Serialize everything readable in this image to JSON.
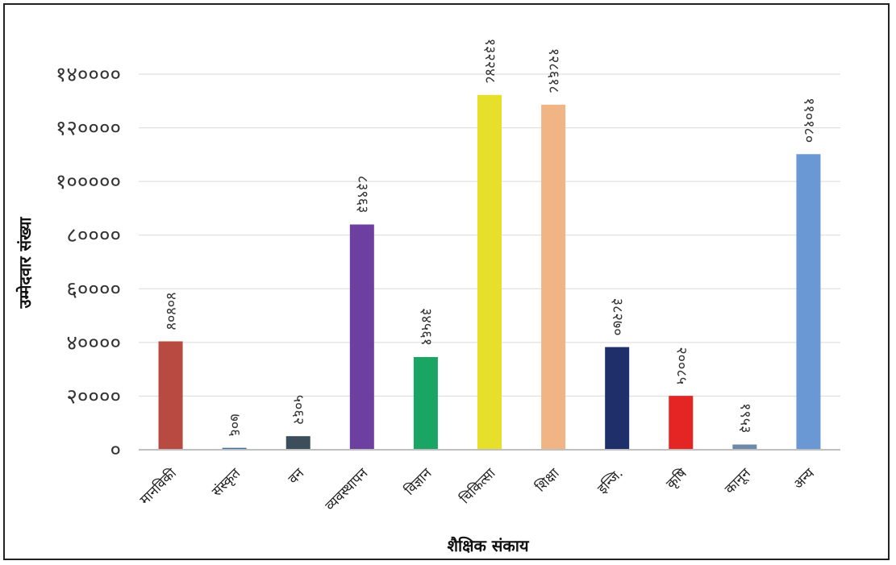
{
  "chart_data": {
    "type": "bar",
    "xlabel": "शैक्षिक संकाय",
    "ylabel": "उम्मेदवार संख्या",
    "categories": [
      "मानविकी",
      "संस्कृत",
      "वन",
      "व्यवस्थापन",
      "विज्ञान",
      "चिकित्सा",
      "शिक्षा",
      "इन्जि.",
      "कृषि",
      "कानून",
      "अन्य"
    ],
    "values": [
      40404,
      706,
      5062,
      83963,
      34561,
      132248,
      128618,
      38270,
      20085,
      1953,
      110180
    ],
    "data_labels": [
      "४०४०४",
      "७०६",
      "५०६२",
      "८३९६३",
      "३४५६१",
      "१३२२४८",
      "१२८६१८",
      "३८२७०",
      "२००८५",
      "१९५३",
      "११०१८०"
    ],
    "ylim": [
      0,
      140000
    ],
    "yticks": [
      0,
      20000,
      40000,
      60000,
      80000,
      100000,
      120000,
      140000
    ],
    "ytick_labels": [
      "०",
      "२००००",
      "४००००",
      "६००००",
      "८००००",
      "१०००००",
      "१२००००",
      "१४००००"
    ],
    "grid": true,
    "colors": [
      "#b84a42",
      "#3d6e9e",
      "#3c4e5a",
      "#6d3fa0",
      "#1aa565",
      "#e6e02a",
      "#f1b585",
      "#1e2f6a",
      "#e52424",
      "#6c8aa8",
      "#6a98d4"
    ]
  }
}
